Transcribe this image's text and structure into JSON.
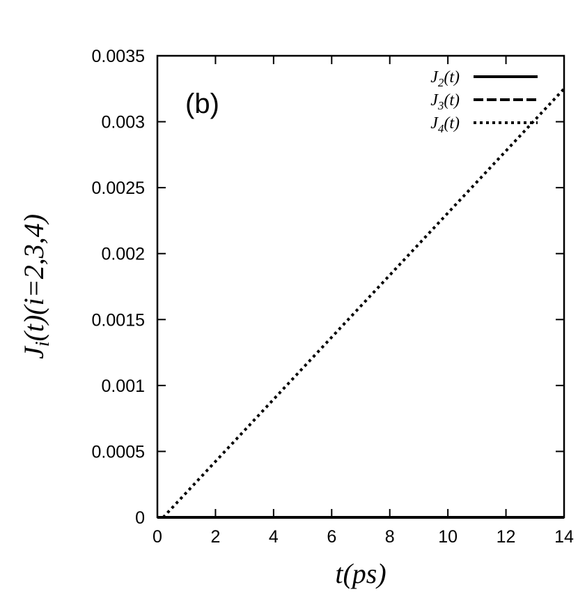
{
  "chart_data": {
    "type": "line",
    "panel_label": "(b)",
    "xlabel": "t(ps)",
    "ylabel": "J_i(t)(i=2,3,4)",
    "xlim": [
      0,
      14
    ],
    "ylim": [
      0,
      0.0035
    ],
    "xticks": [
      0,
      2,
      4,
      6,
      8,
      10,
      12,
      14
    ],
    "xtick_labels": [
      "0",
      "2",
      "4",
      "6",
      "8",
      "10",
      "12",
      "14"
    ],
    "yticks": [
      0,
      0.0005,
      0.001,
      0.0015,
      0.002,
      0.0025,
      0.003,
      0.0035
    ],
    "ytick_labels": [
      "0",
      "0.0005",
      "0.001",
      "0.0015",
      "0.002",
      "0.0025",
      "0.003",
      "0.0035"
    ],
    "grid": false,
    "legend_position": "top-right",
    "series": [
      {
        "name": "J2(t)",
        "sub": "2",
        "style": "solid",
        "x": [
          0,
          14
        ],
        "y": [
          0,
          0
        ]
      },
      {
        "name": "J3(t)",
        "sub": "3",
        "style": "dashed",
        "x": [
          0,
          14
        ],
        "y": [
          0,
          0
        ]
      },
      {
        "name": "J4(t)",
        "sub": "4",
        "style": "dotted",
        "x": [
          0.2,
          14
        ],
        "y": [
          0,
          0.00325
        ]
      }
    ],
    "colors": {
      "line": "#000000",
      "background": "#ffffff"
    }
  }
}
